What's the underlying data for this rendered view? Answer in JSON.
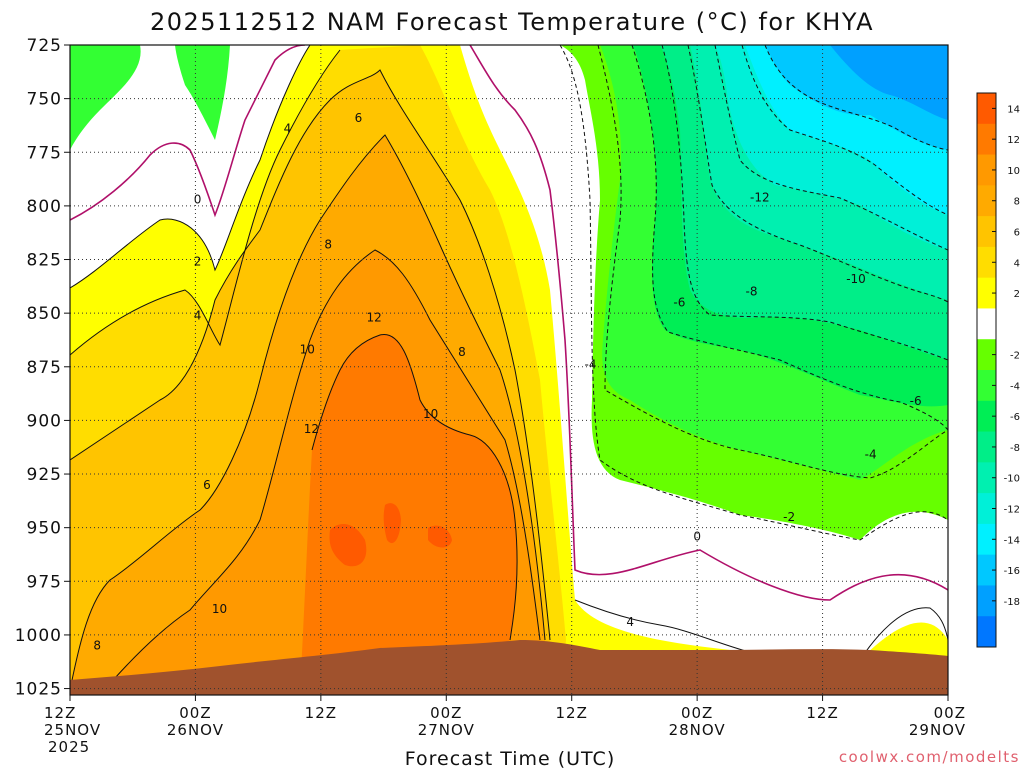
{
  "chart_data": {
    "type": "heatmap",
    "title": "2025112512 NAM Forecast Temperature (°C) for KHYA",
    "xlabel": "Forecast Time (UTC)",
    "ylabel": "",
    "x_ticks": [
      {
        "hours": 0,
        "line1": "12Z",
        "line2": "25NOV",
        "line3": "2025"
      },
      {
        "hours": 12,
        "line1": "00Z",
        "line2": "26NOV",
        "line3": ""
      },
      {
        "hours": 24,
        "line1": "12Z",
        "line2": "",
        "line3": ""
      },
      {
        "hours": 36,
        "line1": "00Z",
        "line2": "27NOV",
        "line3": ""
      },
      {
        "hours": 48,
        "line1": "12Z",
        "line2": "",
        "line3": ""
      },
      {
        "hours": 60,
        "line1": "00Z",
        "line2": "28NOV",
        "line3": ""
      },
      {
        "hours": 72,
        "line1": "12Z",
        "line2": "",
        "line3": ""
      },
      {
        "hours": 84,
        "line1": "00Z",
        "line2": "29NOV",
        "line3": ""
      }
    ],
    "xlim_hours": [
      0,
      84
    ],
    "y_ticks": [
      725,
      750,
      775,
      800,
      825,
      850,
      875,
      900,
      925,
      950,
      975,
      1000,
      1025
    ],
    "ylim_hPa": [
      1028,
      725
    ],
    "grid": true,
    "colorbar": {
      "placement": "right",
      "levels": [
        {
          "label": "14",
          "color": "#ff5a00"
        },
        {
          "label": "12",
          "color": "#ff7a00"
        },
        {
          "label": "10",
          "color": "#ff9900"
        },
        {
          "label": "8",
          "color": "#ffaa00"
        },
        {
          "label": "6",
          "color": "#ffc400"
        },
        {
          "label": "4",
          "color": "#ffdd00"
        },
        {
          "label": "2",
          "color": "#ffff00"
        },
        {
          "label": "",
          "color": "#ffffff"
        },
        {
          "label": "-2",
          "color": "#66ff00"
        },
        {
          "label": "-4",
          "color": "#33ff33"
        },
        {
          "label": "-6",
          "color": "#00ee55"
        },
        {
          "label": "-8",
          "color": "#00ee88"
        },
        {
          "label": "-10",
          "color": "#00f0b0"
        },
        {
          "label": "-12",
          "color": "#00f0d8"
        },
        {
          "label": "-14",
          "color": "#00f0ff"
        },
        {
          "label": "-16",
          "color": "#00c8ff"
        },
        {
          "label": "-18",
          "color": "#00a0ff"
        },
        {
          "label": "",
          "color": "#0077ff"
        }
      ]
    },
    "contour_labels": [
      {
        "text": "0",
        "hours": 12.2,
        "hPa": 797
      },
      {
        "text": "2",
        "hours": 12.2,
        "hPa": 826
      },
      {
        "text": "4",
        "hours": 12.2,
        "hPa": 851
      },
      {
        "text": "4",
        "hours": 20.8,
        "hPa": 764
      },
      {
        "text": "6",
        "hours": 27.6,
        "hPa": 759
      },
      {
        "text": "8",
        "hours": 24.7,
        "hPa": 818
      },
      {
        "text": "6",
        "hours": 13.1,
        "hPa": 930
      },
      {
        "text": "10",
        "hours": 22.7,
        "hPa": 867
      },
      {
        "text": "12",
        "hours": 29.1,
        "hPa": 852
      },
      {
        "text": "12",
        "hours": 23.1,
        "hPa": 904
      },
      {
        "text": "8",
        "hours": 37.5,
        "hPa": 868
      },
      {
        "text": "10",
        "hours": 34.5,
        "hPa": 897
      },
      {
        "text": "10",
        "hours": 14.3,
        "hPa": 988
      },
      {
        "text": "8",
        "hours": 2.6,
        "hPa": 1005
      },
      {
        "text": "-4",
        "hours": 49.8,
        "hPa": 874
      },
      {
        "text": "-6",
        "hours": 58.3,
        "hPa": 845
      },
      {
        "text": "-8",
        "hours": 65.2,
        "hPa": 840
      },
      {
        "text": "-12",
        "hours": 66.0,
        "hPa": 796
      },
      {
        "text": "-10",
        "hours": 75.2,
        "hPa": 834
      },
      {
        "text": "-6",
        "hours": 80.9,
        "hPa": 891
      },
      {
        "text": "-4",
        "hours": 76.6,
        "hPa": 916
      },
      {
        "text": "-2",
        "hours": 68.8,
        "hPa": 945
      },
      {
        "text": "0",
        "hours": 60.0,
        "hPa": 954
      },
      {
        "text": "4",
        "hours": 53.6,
        "hPa": 994
      }
    ]
  },
  "credit": "coolwx.com/modelts"
}
